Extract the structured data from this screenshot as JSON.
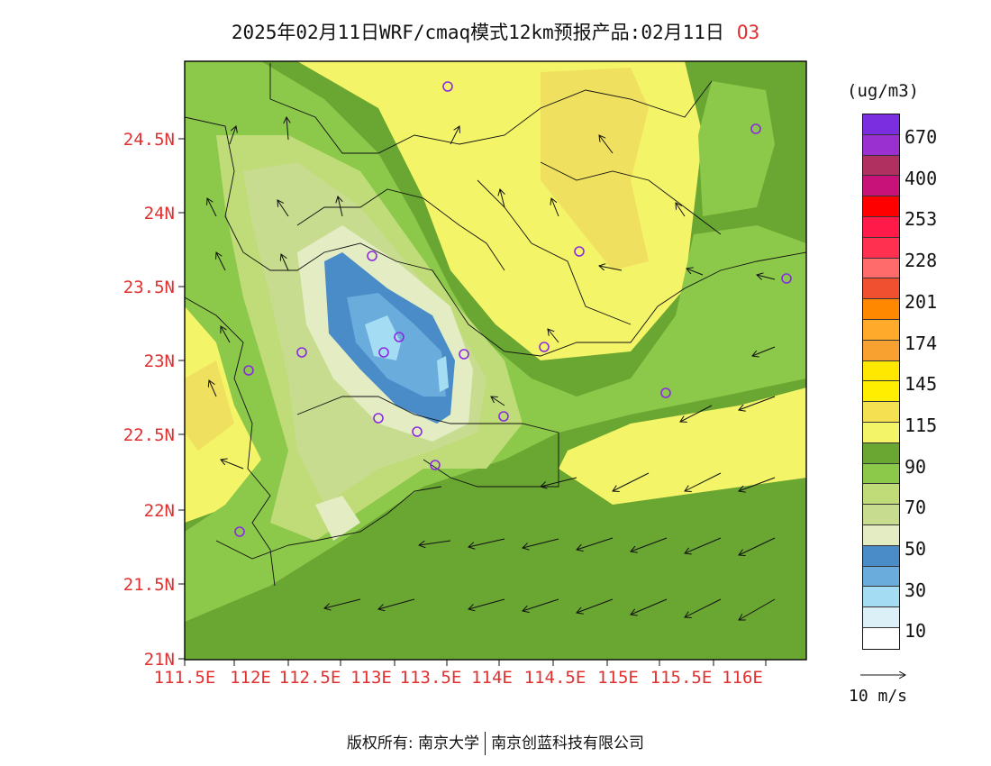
{
  "title": "2025年02月11日WRF/cmaq模式12km预报产品:02月11日",
  "pollutant": "O3",
  "units": "(ug/m3)",
  "lat_labels": [
    "24.5N",
    "24N",
    "23.5N",
    "23N",
    "22.5N",
    "22N",
    "21.5N",
    "21N"
  ],
  "lon_labels": [
    "111.5E",
    "112E",
    "112.5E",
    "113E",
    "113.5E",
    "114E",
    "114.5E",
    "115E",
    "115.5E",
    "116E"
  ],
  "colorbar": {
    "colors": [
      "#7a2ee0",
      "#9a30d0",
      "#b03060",
      "#c8127a",
      "#ff0000",
      "#ff1a4a",
      "#ff3050",
      "#ff6a6a",
      "#f05030",
      "#ff8800",
      "#ffaa2a",
      "#f8a030",
      "#ffe800",
      "#ffee00",
      "#f4e050",
      "#f4f468",
      "#6aa632",
      "#8cc84a",
      "#c0dc78",
      "#c8dc90",
      "#e4ecc4",
      "#4a8cc8",
      "#6aacdc",
      "#a4dcf4",
      "#dcf0f8",
      "#ffffff"
    ],
    "labels": [
      "670",
      "400",
      "253",
      "228",
      "201",
      "174",
      "145",
      "115",
      "90",
      "70",
      "50",
      "30",
      "10"
    ]
  },
  "wind_reference": "10 m/s",
  "footer": {
    "left": "版权所有: 南京大学",
    "right": "南京创蓝科技有限公司"
  }
}
